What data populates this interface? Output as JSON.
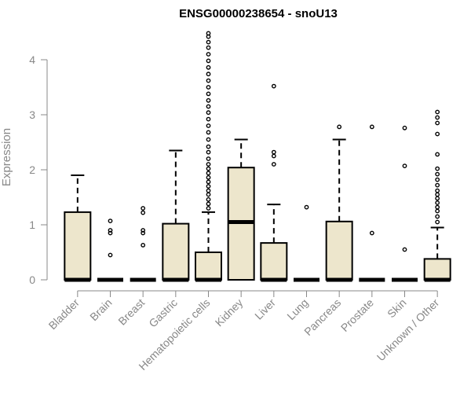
{
  "chart_data": {
    "type": "box",
    "title": "ENSG00000238654 - snoU13",
    "xlabel": "",
    "ylabel": "Expression",
    "ylim": [
      0,
      4.5
    ],
    "yticks": [
      0,
      1,
      2,
      3,
      4
    ],
    "box_fill": "#ede6cc",
    "categories": [
      "Bladder",
      "Brain",
      "Breast",
      "Gastric",
      "Hematopoietic cells",
      "Kidney",
      "Liver",
      "Lung",
      "Pancreas",
      "Prostate",
      "Skin",
      "Unknown / Other"
    ],
    "boxes": [
      {
        "category": "Bladder",
        "min": 0,
        "q1": 0,
        "median": 0,
        "q3": 1.23,
        "max": 1.9,
        "outliers": []
      },
      {
        "category": "Brain",
        "min": 0,
        "q1": 0,
        "median": 0,
        "q3": 0,
        "max": 0,
        "outliers": [
          0.45,
          0.85,
          0.9,
          1.07
        ]
      },
      {
        "category": "Breast",
        "min": 0,
        "q1": 0,
        "median": 0,
        "q3": 0,
        "max": 0,
        "outliers": [
          0.63,
          0.85,
          0.9,
          1.22,
          1.3
        ]
      },
      {
        "category": "Gastric",
        "min": 0,
        "q1": 0,
        "median": 0,
        "q3": 1.02,
        "max": 2.35,
        "outliers": []
      },
      {
        "category": "Hematopoietic cells",
        "min": 0,
        "q1": 0,
        "median": 0,
        "q3": 0.5,
        "max": 1.23,
        "outliers": [
          1.3,
          1.38,
          1.46,
          1.55,
          1.62,
          1.7,
          1.78,
          1.86,
          1.94,
          2.02,
          2.1,
          2.2,
          2.32,
          2.42,
          2.55,
          2.68,
          2.8,
          2.92,
          3.04,
          3.15,
          3.26,
          3.38,
          3.5,
          3.62,
          3.74,
          3.86,
          3.98,
          4.1,
          4.22,
          4.32,
          4.42,
          4.48
        ]
      },
      {
        "category": "Kidney",
        "min": 0,
        "q1": 0,
        "median": 1.05,
        "q3": 2.04,
        "max": 2.55,
        "outliers": []
      },
      {
        "category": "Liver",
        "min": 0,
        "q1": 0,
        "median": 0,
        "q3": 0.67,
        "max": 1.37,
        "outliers": [
          2.1,
          2.25,
          2.32,
          3.52
        ]
      },
      {
        "category": "Lung",
        "min": 0,
        "q1": 0,
        "median": 0,
        "q3": 0,
        "max": 0,
        "outliers": [
          1.32
        ]
      },
      {
        "category": "Pancreas",
        "min": 0,
        "q1": 0,
        "median": 0,
        "q3": 1.06,
        "max": 2.55,
        "outliers": [
          2.78
        ]
      },
      {
        "category": "Prostate",
        "min": 0,
        "q1": 0,
        "median": 0,
        "q3": 0,
        "max": 0,
        "outliers": [
          0.85,
          2.78
        ]
      },
      {
        "category": "Skin",
        "min": 0,
        "q1": 0,
        "median": 0,
        "q3": 0,
        "max": 0,
        "outliers": [
          0.55,
          2.07,
          2.76
        ]
      },
      {
        "category": "Unknown / Other",
        "min": 0,
        "q1": 0,
        "median": 0,
        "q3": 0.38,
        "max": 0.95,
        "outliers": [
          1.05,
          1.15,
          1.25,
          1.32,
          1.4,
          1.48,
          1.55,
          1.62,
          1.72,
          1.82,
          1.92,
          2.02,
          2.28,
          2.65,
          2.85,
          2.95,
          3.05
        ]
      }
    ]
  }
}
